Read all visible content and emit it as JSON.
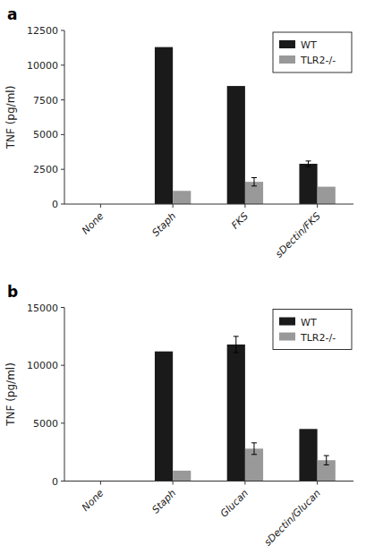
{
  "chart_data": [
    {
      "type": "bar",
      "title": "a",
      "categories": [
        "None",
        "Staph",
        "FKS",
        "sDectin/FKS"
      ],
      "series": [
        {
          "name": "WT",
          "color": "#1a1a1a",
          "values": [
            0,
            11300,
            8500,
            2900
          ],
          "errors": [
            0,
            0,
            0,
            200
          ]
        },
        {
          "name": "TLR2-/-",
          "color": "#999999",
          "values": [
            0,
            950,
            1600,
            1250
          ],
          "errors": [
            0,
            0,
            300,
            0
          ]
        }
      ],
      "y_label": "TNF (pg/ml)",
      "ylim": [
        0,
        12500
      ],
      "yticks": [
        0,
        2500,
        5000,
        7500,
        10000,
        12500
      ],
      "legend": "upper right",
      "grid": false
    },
    {
      "type": "bar",
      "title": "b",
      "categories": [
        "None",
        "Staph",
        "Glucan",
        "sDectin/Glucan"
      ],
      "series": [
        {
          "name": "WT",
          "color": "#1a1a1a",
          "values": [
            0,
            11200,
            11800,
            4500
          ],
          "errors": [
            0,
            0,
            700,
            0
          ]
        },
        {
          "name": "TLR2-/-",
          "color": "#999999",
          "values": [
            0,
            900,
            2800,
            1800
          ],
          "errors": [
            0,
            0,
            500,
            400
          ]
        }
      ],
      "y_label": "TNF (pg/ml)",
      "ylim": [
        0,
        15000
      ],
      "yticks": [
        0,
        5000,
        10000,
        15000
      ],
      "legend": "upper right",
      "grid": false
    }
  ]
}
